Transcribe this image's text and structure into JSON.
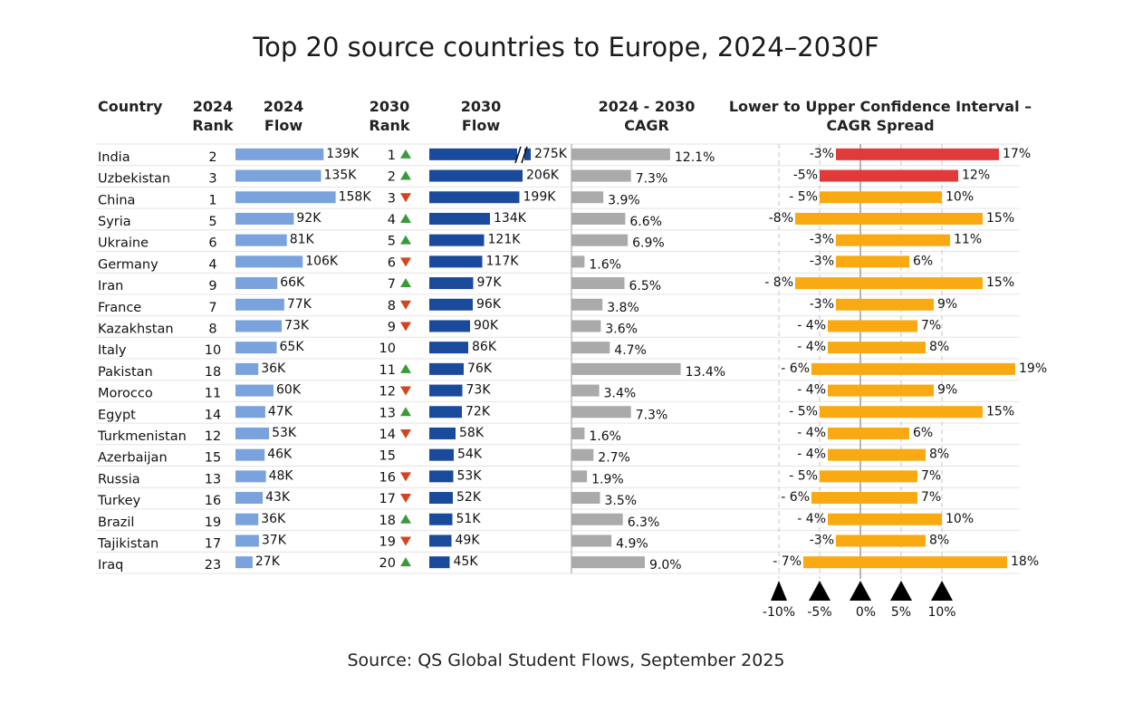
{
  "chart_data": {
    "type": "table",
    "title": "Top 20 source countries to Europe, 2024–2030F",
    "source": "Source: QS Global Student Flows, September 2025",
    "columns": {
      "country": "Country",
      "rank_2024": [
        "2024",
        "Rank"
      ],
      "flow_2024": [
        "2024",
        "Flow"
      ],
      "rank_2030": [
        "2030",
        "Rank"
      ],
      "flow_2030": [
        "2030",
        "Flow"
      ],
      "cagr": [
        "2024 - 2030",
        "CAGR"
      ],
      "ci": [
        "Lower to Upper Confidence Interval –",
        "CAGR Spread"
      ]
    },
    "ci_axis": {
      "ticks": [
        -10,
        -5,
        0,
        5,
        10
      ],
      "tick_labels": [
        "-10%",
        "-5%",
        "0%",
        "5%",
        "10%"
      ]
    },
    "colors": {
      "flow_2024": "#7aa2dc",
      "flow_2030": "#1a4a9c",
      "cagr": "#aaaaaa",
      "ci_high": "#e13a3a",
      "ci_normal": "#f9a912",
      "rank_up": "#3a9a3a",
      "rank_down": "#d2451e"
    },
    "rows": [
      {
        "country": "India",
        "rank_2024": 2,
        "flow_2024": 139,
        "flow_2024_label": "139K",
        "rank_2030": 1,
        "rank_change": "up",
        "rank_2030_label": "1",
        "flow_2030": 275,
        "flow_2030_label": "275K",
        "axis_break": true,
        "cagr": 12.1,
        "cagr_label": "12.1%",
        "ci_lower": -3,
        "ci_upper": 17,
        "ci_lower_label": "-3%",
        "ci_upper_label": "17%",
        "ci_color": "high"
      },
      {
        "country": "Uzbekistan",
        "rank_2024": 3,
        "flow_2024": 135,
        "flow_2024_label": "135K",
        "rank_2030": 2,
        "rank_change": "up",
        "rank_2030_label": "2",
        "flow_2030": 206,
        "flow_2030_label": "206K",
        "cagr": 7.3,
        "cagr_label": "7.3%",
        "ci_lower": -5,
        "ci_upper": 12,
        "ci_lower_label": "-5%",
        "ci_upper_label": "12%",
        "ci_color": "high"
      },
      {
        "country": "China",
        "rank_2024": 1,
        "flow_2024": 158,
        "flow_2024_label": "158K",
        "rank_2030": 3,
        "rank_change": "down",
        "rank_2030_label": "3",
        "flow_2030": 199,
        "flow_2030_label": "199K",
        "cagr": 3.9,
        "cagr_label": "3.9%",
        "ci_lower": -5,
        "ci_upper": 10,
        "ci_lower_label": "- 5%",
        "ci_upper_label": "10%",
        "ci_color": "normal"
      },
      {
        "country": "Syria",
        "rank_2024": 5,
        "flow_2024": 92,
        "flow_2024_label": "92K",
        "rank_2030": 4,
        "rank_change": "up",
        "rank_2030_label": "4",
        "flow_2030": 134,
        "flow_2030_label": "134K",
        "cagr": 6.6,
        "cagr_label": "6.6%",
        "ci_lower": -8,
        "ci_upper": 15,
        "ci_lower_label": "-8%",
        "ci_upper_label": "15%",
        "ci_color": "normal"
      },
      {
        "country": "Ukraine",
        "rank_2024": 6,
        "flow_2024": 81,
        "flow_2024_label": "81K",
        "rank_2030": 5,
        "rank_change": "up",
        "rank_2030_label": "5",
        "flow_2030": 121,
        "flow_2030_label": "121K",
        "cagr": 6.9,
        "cagr_label": "6.9%",
        "ci_lower": -3,
        "ci_upper": 11,
        "ci_lower_label": "-3%",
        "ci_upper_label": "11%",
        "ci_color": "normal"
      },
      {
        "country": "Germany",
        "rank_2024": 4,
        "flow_2024": 106,
        "flow_2024_label": "106K",
        "rank_2030": 6,
        "rank_change": "down",
        "rank_2030_label": "6",
        "flow_2030": 117,
        "flow_2030_label": "117K",
        "cagr": 1.6,
        "cagr_label": "1.6%",
        "ci_lower": -3,
        "ci_upper": 6,
        "ci_lower_label": "-3%",
        "ci_upper_label": "6%",
        "ci_color": "normal"
      },
      {
        "country": "Iran",
        "rank_2024": 9,
        "flow_2024": 66,
        "flow_2024_label": "66K",
        "rank_2030": 7,
        "rank_change": "up",
        "rank_2030_label": "7",
        "flow_2030": 97,
        "flow_2030_label": "97K",
        "cagr": 6.5,
        "cagr_label": "6.5%",
        "ci_lower": -8,
        "ci_upper": 15,
        "ci_lower_label": "- 8%",
        "ci_upper_label": "15%",
        "ci_color": "normal"
      },
      {
        "country": "France",
        "rank_2024": 7,
        "flow_2024": 77,
        "flow_2024_label": "77K",
        "rank_2030": 8,
        "rank_change": "down",
        "rank_2030_label": "8",
        "flow_2030": 96,
        "flow_2030_label": "96K",
        "cagr": 3.8,
        "cagr_label": "3.8%",
        "ci_lower": -3,
        "ci_upper": 9,
        "ci_lower_label": "-3%",
        "ci_upper_label": "9%",
        "ci_color": "normal"
      },
      {
        "country": "Kazakhstan",
        "rank_2024": 8,
        "flow_2024": 73,
        "flow_2024_label": "73K",
        "rank_2030": 9,
        "rank_change": "down",
        "rank_2030_label": "9",
        "flow_2030": 90,
        "flow_2030_label": "90K",
        "cagr": 3.6,
        "cagr_label": "3.6%",
        "ci_lower": -4,
        "ci_upper": 7,
        "ci_lower_label": "- 4%",
        "ci_upper_label": "7%",
        "ci_color": "normal"
      },
      {
        "country": "Italy",
        "rank_2024": 10,
        "flow_2024": 65,
        "flow_2024_label": "65K",
        "rank_2030": 10,
        "rank_change": "none",
        "rank_2030_label": "10",
        "flow_2030": 86,
        "flow_2030_label": "86K",
        "cagr": 4.7,
        "cagr_label": "4.7%",
        "ci_lower": -4,
        "ci_upper": 8,
        "ci_lower_label": "- 4%",
        "ci_upper_label": "8%",
        "ci_color": "normal"
      },
      {
        "country": "Pakistan",
        "rank_2024": 18,
        "flow_2024": 36,
        "flow_2024_label": "36K",
        "rank_2030": 11,
        "rank_change": "up",
        "rank_2030_label": "11",
        "flow_2030": 76,
        "flow_2030_label": "76K",
        "cagr": 13.4,
        "cagr_label": "13.4%",
        "ci_lower": -6,
        "ci_upper": 19,
        "ci_lower_label": "- 6%",
        "ci_upper_label": "19%",
        "ci_color": "normal"
      },
      {
        "country": "Morocco",
        "rank_2024": 11,
        "flow_2024": 60,
        "flow_2024_label": "60K",
        "rank_2030": 12,
        "rank_change": "down",
        "rank_2030_label": "12",
        "flow_2030": 73,
        "flow_2030_label": "73K",
        "cagr": 3.4,
        "cagr_label": "3.4%",
        "ci_lower": -4,
        "ci_upper": 9,
        "ci_lower_label": "- 4%",
        "ci_upper_label": "9%",
        "ci_color": "normal"
      },
      {
        "country": "Egypt",
        "rank_2024": 14,
        "flow_2024": 47,
        "flow_2024_label": "47K",
        "rank_2030": 13,
        "rank_change": "up",
        "rank_2030_label": "13",
        "flow_2030": 72,
        "flow_2030_label": "72K",
        "cagr": 7.3,
        "cagr_label": "7.3%",
        "ci_lower": -5,
        "ci_upper": 15,
        "ci_lower_label": "- 5%",
        "ci_upper_label": "15%",
        "ci_color": "normal"
      },
      {
        "country": "Turkmenistan",
        "rank_2024": 12,
        "flow_2024": 53,
        "flow_2024_label": "53K",
        "rank_2030": 14,
        "rank_change": "down",
        "rank_2030_label": "14",
        "flow_2030": 58,
        "flow_2030_label": "58K",
        "cagr": 1.6,
        "cagr_label": "1.6%",
        "ci_lower": -4,
        "ci_upper": 6,
        "ci_lower_label": "- 4%",
        "ci_upper_label": "6%",
        "ci_color": "normal"
      },
      {
        "country": "Azerbaijan",
        "rank_2024": 15,
        "flow_2024": 46,
        "flow_2024_label": "46K",
        "rank_2030": 15,
        "rank_change": "none",
        "rank_2030_label": "15",
        "flow_2030": 54,
        "flow_2030_label": "54K",
        "cagr": 2.7,
        "cagr_label": "2.7%",
        "ci_lower": -4,
        "ci_upper": 8,
        "ci_lower_label": "- 4%",
        "ci_upper_label": "8%",
        "ci_color": "normal"
      },
      {
        "country": "Russia",
        "rank_2024": 13,
        "flow_2024": 48,
        "flow_2024_label": "48K",
        "rank_2030": 16,
        "rank_change": "down",
        "rank_2030_label": "16",
        "flow_2030": 53,
        "flow_2030_label": "53K",
        "cagr": 1.9,
        "cagr_label": "1.9%",
        "ci_lower": -5,
        "ci_upper": 7,
        "ci_lower_label": "- 5%",
        "ci_upper_label": "7%",
        "ci_color": "normal"
      },
      {
        "country": "Turkey",
        "rank_2024": 16,
        "flow_2024": 43,
        "flow_2024_label": "43K",
        "rank_2030": 17,
        "rank_change": "down",
        "rank_2030_label": "17",
        "flow_2030": 52,
        "flow_2030_label": "52K",
        "cagr": 3.5,
        "cagr_label": "3.5%",
        "ci_lower": -6,
        "ci_upper": 7,
        "ci_lower_label": "- 6%",
        "ci_upper_label": "7%",
        "ci_color": "normal"
      },
      {
        "country": "Brazil",
        "rank_2024": 19,
        "flow_2024": 36,
        "flow_2024_label": "36K",
        "rank_2030": 18,
        "rank_change": "up",
        "rank_2030_label": "18",
        "flow_2030": 51,
        "flow_2030_label": "51K",
        "cagr": 6.3,
        "cagr_label": "6.3%",
        "ci_lower": -4,
        "ci_upper": 10,
        "ci_lower_label": "- 4%",
        "ci_upper_label": "10%",
        "ci_color": "normal"
      },
      {
        "country": "Tajikistan",
        "rank_2024": 17,
        "flow_2024": 37,
        "flow_2024_label": "37K",
        "rank_2030": 19,
        "rank_change": "down",
        "rank_2030_label": "19",
        "flow_2030": 49,
        "flow_2030_label": "49K",
        "cagr": 4.9,
        "cagr_label": "4.9%",
        "ci_lower": -3,
        "ci_upper": 8,
        "ci_lower_label": "-3%",
        "ci_upper_label": "8%",
        "ci_color": "normal"
      },
      {
        "country": "Iraq",
        "rank_2024": 23,
        "flow_2024": 27,
        "flow_2024_label": "27K",
        "rank_2030": 20,
        "rank_change": "up",
        "rank_2030_label": "20",
        "flow_2030": 45,
        "flow_2030_label": "45K",
        "cagr": 9.0,
        "cagr_label": "9.0%",
        "ci_lower": -7,
        "ci_upper": 18,
        "ci_lower_label": "- 7%",
        "ci_upper_label": "18%",
        "ci_color": "normal"
      }
    ]
  }
}
